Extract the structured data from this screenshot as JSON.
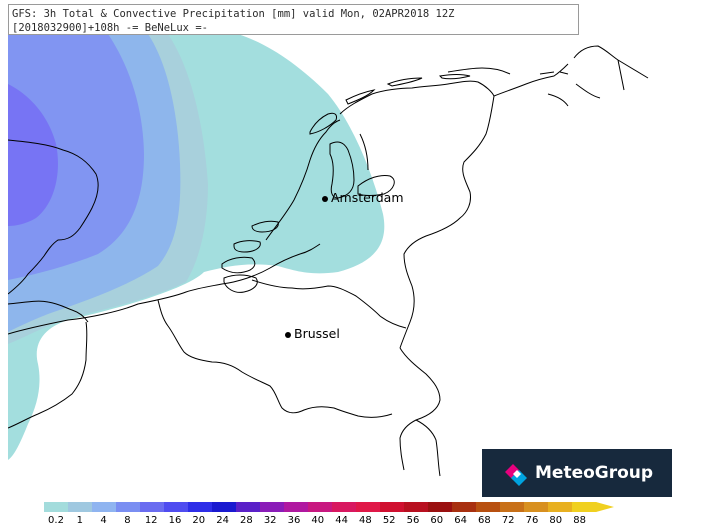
{
  "header": {
    "line1": "GFS: 3h Total & Convective Precipitation [mm] valid Mon, 02APR2018 12Z",
    "line2": "[2018032900]+108h -= BeNeLux =-"
  },
  "cities": {
    "amsterdam": "Amsterdam",
    "brussel": "Brussel"
  },
  "logo": {
    "text": "MeteoGroup",
    "colors": [
      "#e6007e",
      "#00a3e0",
      "#ffffff"
    ]
  },
  "legend": {
    "labels": [
      "0.2",
      "1",
      "4",
      "8",
      "12",
      "16",
      "20",
      "24",
      "28",
      "32",
      "36",
      "40",
      "44",
      "48",
      "52",
      "56",
      "60",
      "64",
      "68",
      "72",
      "76",
      "80",
      "88"
    ],
    "colors": [
      "#a3dcdc",
      "#9fc8e0",
      "#8fb4f0",
      "#7a8ef2",
      "#6a6cf0",
      "#4f4cf0",
      "#2e2ee8",
      "#1a1ad0",
      "#5a20c8",
      "#8a1cb8",
      "#b018a0",
      "#c81880",
      "#d81860",
      "#e01848",
      "#d01030",
      "#b81020",
      "#9a1010",
      "#a83010",
      "#b85010",
      "#c87018",
      "#d89020",
      "#e8b020",
      "#f0d020"
    ]
  },
  "precip_colors": {
    "level1": "#a3dede",
    "level2": "#a8d0dc",
    "level3": "#8eb6ec",
    "level4": "#8195f2",
    "level5": "#7774f4"
  }
}
